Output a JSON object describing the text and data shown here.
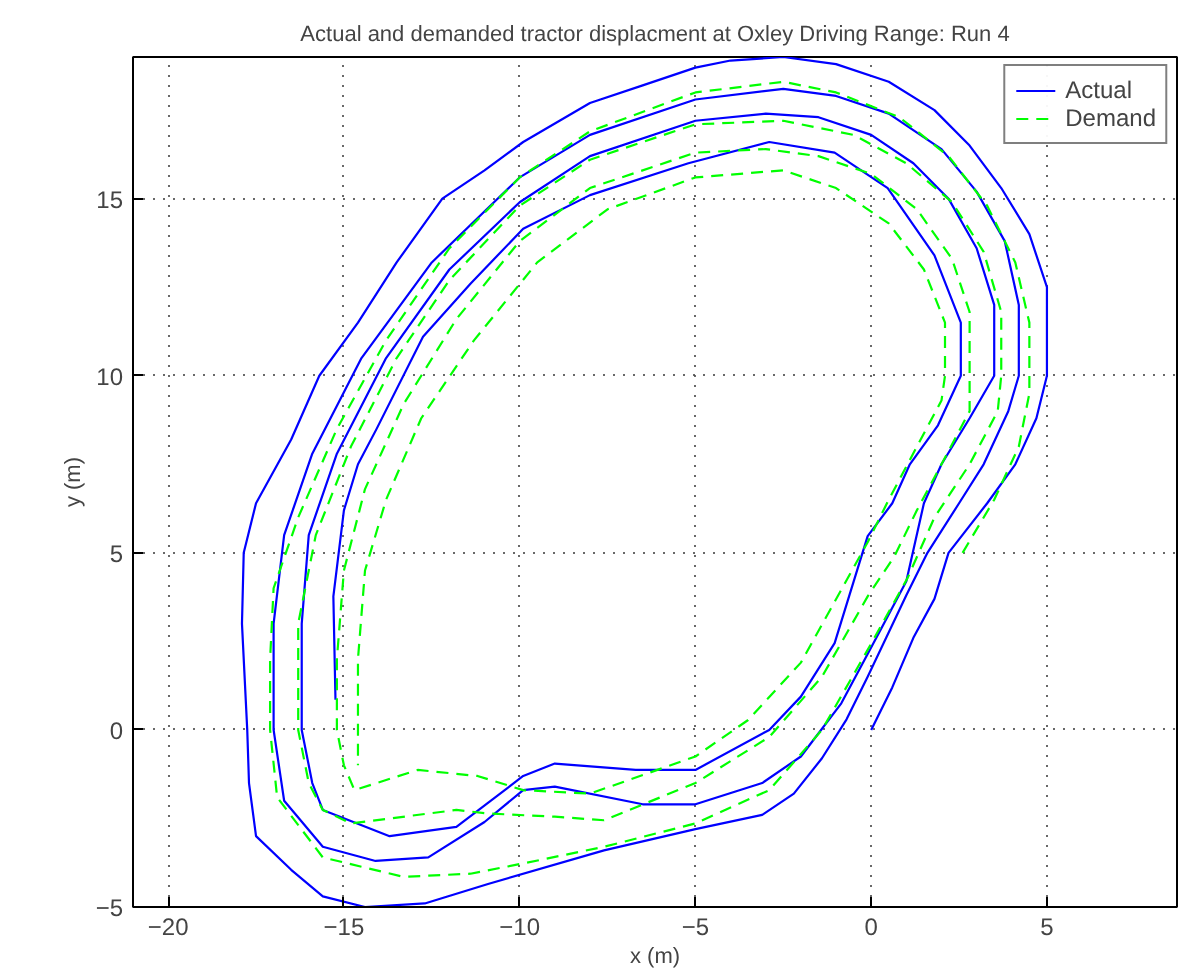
{
  "chart_data": {
    "type": "line",
    "title": "Actual and demanded tractor displacment at Oxley Driving Range: Run 4",
    "xlabel": "x (m)",
    "ylabel": "y (m)",
    "xlim": [
      -21,
      8.7
    ],
    "ylim": [
      -5,
      19
    ],
    "xticks": [
      -20,
      -15,
      -10,
      -5,
      0,
      5
    ],
    "yticks": [
      -5,
      0,
      5,
      10,
      15
    ],
    "grid": true,
    "legend": "top right",
    "series": [
      {
        "name": "Actual",
        "color": "#0000ff",
        "line_style": "solid",
        "x": [
          0,
          0.6,
          1.2,
          1.8,
          2.2,
          3.3,
          4.1,
          4.7,
          5.0,
          5.0,
          4.5,
          3.7,
          2.8,
          1.8,
          0.5,
          -1,
          -2.5,
          -4,
          -5,
          -6.5,
          -8,
          -9.9,
          -11,
          -12.2,
          -13.5,
          -14.6,
          -15.7,
          -16.5,
          -17.5,
          -17.85,
          -17.9,
          -17.75,
          -17.7,
          -17.5,
          -16.5,
          -15.6,
          -14.4,
          -12.7,
          -10.9,
          -7.6,
          -5,
          -3.1,
          -2.2,
          -1.4,
          -0.7,
          -0.1,
          1.0,
          1.6,
          2.5,
          3.2,
          3.9,
          4.2,
          4.2,
          3.8,
          3.0,
          2.0,
          0.5,
          -1,
          -2.5,
          -5,
          -8,
          -10,
          -12.5,
          -14.5,
          -15.9,
          -16.7,
          -17.0,
          -17.0,
          -16.7,
          -15.6,
          -14.1,
          -12.6,
          -11.0,
          -9.9,
          -9.0,
          -6.5,
          -5.0,
          -3.1,
          -2.0,
          -0.85,
          0.28,
          1.0,
          1.5,
          2.0,
          2.8,
          3.5,
          3.5,
          3.0,
          2.2,
          1.2,
          0,
          -1.5,
          -3,
          -5,
          -8,
          -10,
          -12,
          -13.8,
          -15.2,
          -16.0,
          -16.2,
          -16.2,
          -15.9,
          -15.6,
          -13.7,
          -11.8,
          -9.9,
          -9.0,
          -6.7,
          -5,
          -2.9,
          -2,
          -1.04,
          -0.1,
          0.6,
          1.1,
          1.9,
          2.55,
          2.55,
          1.8,
          0.47,
          -1.04,
          -2.9,
          -5.2,
          -8,
          -9.9,
          -11.4,
          -12.75,
          -14.07,
          -14.6,
          -15.0,
          -15.3,
          -15.24
        ],
        "values": [
          0,
          1.2,
          2.6,
          3.7,
          5.0,
          6.4,
          7.5,
          8.8,
          10,
          12.5,
          14.0,
          15.3,
          16.5,
          17.5,
          18.3,
          18.8,
          19.0,
          18.9,
          18.7,
          18.2,
          17.7,
          16.6,
          15.8,
          15,
          13.2,
          11.5,
          10,
          8.2,
          6.4,
          5,
          3,
          0,
          -1.5,
          -3.0,
          -3.95,
          -4.7,
          -5.0,
          -4.9,
          -4.35,
          -3.4,
          -2.8,
          -2.4,
          -1.8,
          -0.8,
          0.3,
          1.5,
          3.8,
          5.0,
          6.4,
          7.5,
          9,
          10,
          12,
          13.8,
          15.2,
          16.4,
          17.4,
          17.9,
          18.1,
          17.8,
          16.8,
          15.6,
          13.2,
          10.5,
          7.8,
          5.5,
          3,
          0,
          -2,
          -3.3,
          -3.7,
          -3.6,
          -2.6,
          -1.7,
          -1.6,
          -2.1,
          -2.1,
          -1.5,
          -0.75,
          0.75,
          2.85,
          4.2,
          6.4,
          7.5,
          8.8,
          10,
          12,
          13.6,
          15,
          16,
          16.8,
          17.3,
          17.4,
          17.2,
          16.2,
          14.9,
          13,
          10.5,
          7.8,
          5.5,
          3,
          0,
          -1.5,
          -2.26,
          -3.0,
          -2.74,
          -1.3,
          -0.95,
          -1.13,
          -1.13,
          0,
          0.94,
          2.45,
          5.47,
          6.4,
          7.5,
          8.6,
          10,
          11.5,
          13.4,
          15.3,
          16.3,
          16.6,
          16.0,
          15.1,
          14.15,
          12.6,
          11.1,
          8.5,
          7.5,
          6.2,
          3.77,
          0.85
        ]
      },
      {
        "name": "Demand",
        "color": "#00ff00",
        "line_style": "dashed",
        "x": [
          2.6,
          3.5,
          4.2,
          4.5,
          4.5,
          4.1,
          3.3,
          2.2,
          0.8,
          -1,
          -2.5,
          -5,
          -8,
          -10,
          -12,
          -13.8,
          -15.2,
          -16.3,
          -17.0,
          -17.1,
          -17.1,
          -16.9,
          -15.6,
          -13.3,
          -11.4,
          -9.9,
          -7.6,
          -5,
          -2.9,
          -1.4,
          -0.1,
          1.04,
          1.8,
          2.8,
          3.6,
          3.7,
          3.7,
          3.2,
          2.3,
          1,
          -0.5,
          -2.5,
          -5,
          -8,
          -10,
          -12,
          -13.5,
          -14.8,
          -15.8,
          -16.3,
          -16.3,
          -16.0,
          -15.6,
          -14.8,
          -11.8,
          -10.9,
          -9.0,
          -7.6,
          -5,
          -2.9,
          -1.4,
          -0.1,
          0.66,
          1.3,
          2.0,
          2.8,
          2.8,
          2.8,
          2.3,
          1.3,
          0,
          -1.5,
          -3,
          -5,
          -8,
          -10,
          -11.8,
          -13.3,
          -14.4,
          -15.0,
          -15.2,
          -15.2,
          -15.0,
          -14.7,
          -12.9,
          -11.2,
          -9.9,
          -8.0,
          -5,
          -3.5,
          -2,
          -0.1,
          0.5,
          1.3,
          2.0,
          2.1,
          2.1,
          1.5,
          0.5,
          -1,
          -2.5,
          -5,
          -7.5,
          -9.5,
          -11.3,
          -12.8,
          -13.8,
          -14.4,
          -14.6,
          -14.6,
          -14.6
        ],
        "values": [
          5.0,
          6.5,
          8,
          9.5,
          11.5,
          13.2,
          14.8,
          16.2,
          17.3,
          18.0,
          18.3,
          18.0,
          16.9,
          15.6,
          13.6,
          11,
          8.5,
          6,
          4,
          2,
          0,
          -1.9,
          -3.6,
          -4.15,
          -4.06,
          -3.77,
          -3.3,
          -2.64,
          -1.7,
          0,
          2.26,
          4.3,
          6,
          7.5,
          9,
          10,
          11.8,
          13.5,
          14.9,
          16,
          16.8,
          17.2,
          17.1,
          16.1,
          14.8,
          12.7,
          10.5,
          8,
          5.5,
          3,
          0,
          -1.5,
          -2.26,
          -2.64,
          -2.26,
          -2.36,
          -2.45,
          -2.55,
          -1.5,
          -0.2,
          1.5,
          3.77,
          4.9,
          6.2,
          7.5,
          9,
          10,
          11.8,
          13.3,
          14.7,
          15.7,
          16.2,
          16.4,
          16.3,
          15.3,
          13.8,
          11.6,
          9.2,
          6.8,
          4.5,
          2,
          0,
          -1.0,
          -1.7,
          -1.13,
          -1.3,
          -1.7,
          -1.8,
          -0.75,
          0.28,
          1.9,
          5.3,
          6.5,
          8,
          9.3,
          10,
          11.5,
          13,
          14.3,
          15.3,
          15.8,
          15.6,
          14.7,
          13.2,
          11,
          8.8,
          6.5,
          4.5,
          2,
          0,
          -1.0
        ]
      }
    ]
  }
}
